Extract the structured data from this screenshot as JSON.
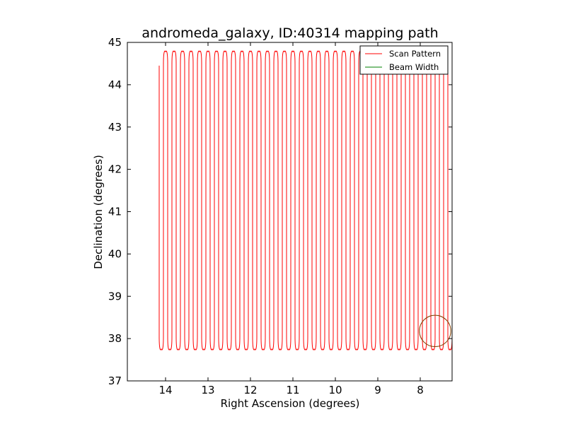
{
  "chart_data": {
    "type": "line",
    "title": "andromeda_galaxy, ID:40314 mapping path",
    "xlabel": "Right Ascension (degrees)",
    "ylabel": "Declination (degrees)",
    "xlim": [
      14.9,
      7.25
    ],
    "ylim": [
      37,
      45
    ],
    "x_inverted": true,
    "xticks": [
      14,
      13,
      12,
      11,
      10,
      9,
      8
    ],
    "yticks": [
      37,
      38,
      39,
      40,
      41,
      42,
      43,
      44,
      45
    ],
    "x_tick_labels": [
      "14",
      "13",
      "12",
      "11",
      "10",
      "9",
      "8"
    ],
    "y_tick_labels": [
      "37",
      "38",
      "39",
      "40",
      "41",
      "42",
      "43",
      "44",
      "45"
    ],
    "grid": false,
    "legend_position": "top-right",
    "series": [
      {
        "name": "Scan Pattern",
        "color": "#ff0000",
        "pattern": "boustrophedon",
        "ra_start": 14.15,
        "ra_end": 7.25,
        "ra_step": 0.1,
        "dec_min": 37.75,
        "dec_max": 44.78,
        "dec_start": 44.45
      },
      {
        "name": "Beam Width",
        "color": "#008000",
        "shape": "circle",
        "center_ra": 7.65,
        "center_dec": 38.18,
        "radius_deg": 0.37,
        "drawn_color": "#804000"
      }
    ]
  }
}
